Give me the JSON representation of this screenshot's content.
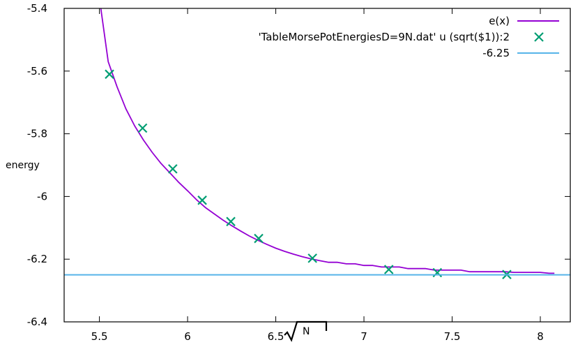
{
  "chart_data": {
    "type": "line",
    "xlabel": "N",
    "ylabel": "energy",
    "xlim": [
      5.3,
      8.17
    ],
    "ylim": [
      -6.4,
      -5.4
    ],
    "x_ticks": [
      {
        "value": 5.5,
        "label": "5.5"
      },
      {
        "value": 6.0,
        "label": "6"
      },
      {
        "value": 6.5,
        "label": "6.5"
      },
      {
        "value": 7.0,
        "label": "7"
      },
      {
        "value": 7.5,
        "label": "7.5"
      },
      {
        "value": 8.0,
        "label": "8"
      }
    ],
    "y_ticks": [
      {
        "value": -5.4,
        "label": "-5.4"
      },
      {
        "value": -5.6,
        "label": "-5.6"
      },
      {
        "value": -5.8,
        "label": "-5.8"
      },
      {
        "value": -6.0,
        "label": "-6"
      },
      {
        "value": -6.2,
        "label": "-6.2"
      },
      {
        "value": -6.4,
        "label": "-6.4"
      }
    ],
    "grid": false,
    "legend_position": "top-right",
    "series": [
      {
        "name": "e(x)",
        "kind": "line",
        "color": "#9400d3",
        "x": [
          5.508,
          5.55,
          5.6,
          5.65,
          5.7,
          5.75,
          5.8,
          5.85,
          5.9,
          5.95,
          6.0,
          6.05,
          6.1,
          6.15,
          6.2,
          6.25,
          6.3,
          6.35,
          6.4,
          6.45,
          6.5,
          6.55,
          6.6,
          6.65,
          6.7,
          6.75,
          6.8,
          6.85,
          6.9,
          6.95,
          7.0,
          7.05,
          7.1,
          7.15,
          7.2,
          7.25,
          7.3,
          7.35,
          7.4,
          7.45,
          7.5,
          7.55,
          7.6,
          7.65,
          7.7,
          7.75,
          7.8,
          7.85,
          7.9,
          7.95,
          8.0,
          8.05,
          8.08
        ],
        "y": [
          -5.4,
          -5.57,
          -5.65,
          -5.72,
          -5.775,
          -5.82,
          -5.86,
          -5.895,
          -5.925,
          -5.955,
          -5.982,
          -6.01,
          -6.035,
          -6.055,
          -6.075,
          -6.093,
          -6.11,
          -6.126,
          -6.14,
          -6.153,
          -6.165,
          -6.175,
          -6.184,
          -6.192,
          -6.199,
          -6.205,
          -6.21,
          -6.21,
          -6.215,
          -6.215,
          -6.22,
          -6.22,
          -6.225,
          -6.225,
          -6.225,
          -6.23,
          -6.23,
          -6.23,
          -6.235,
          -6.235,
          -6.235,
          -6.235,
          -6.24,
          -6.24,
          -6.24,
          -6.24,
          -6.24,
          -6.242,
          -6.242,
          -6.242,
          -6.242,
          -6.245,
          -6.245
        ]
      },
      {
        "name": "'TableMorsePotEnergiesD=9N.dat'  u (sqrt($1)):2",
        "kind": "points",
        "color": "#009e73",
        "x": [
          5.557,
          5.745,
          5.916,
          6.083,
          6.245,
          6.403,
          6.708,
          7.141,
          7.416,
          7.81
        ],
        "y": [
          -5.61,
          -5.782,
          -5.912,
          -6.012,
          -6.08,
          -6.134,
          -6.197,
          -6.233,
          -6.243,
          -6.249
        ]
      },
      {
        "name": "-6.25",
        "kind": "hline",
        "color": "#56b4e9",
        "value": -6.25
      }
    ]
  }
}
